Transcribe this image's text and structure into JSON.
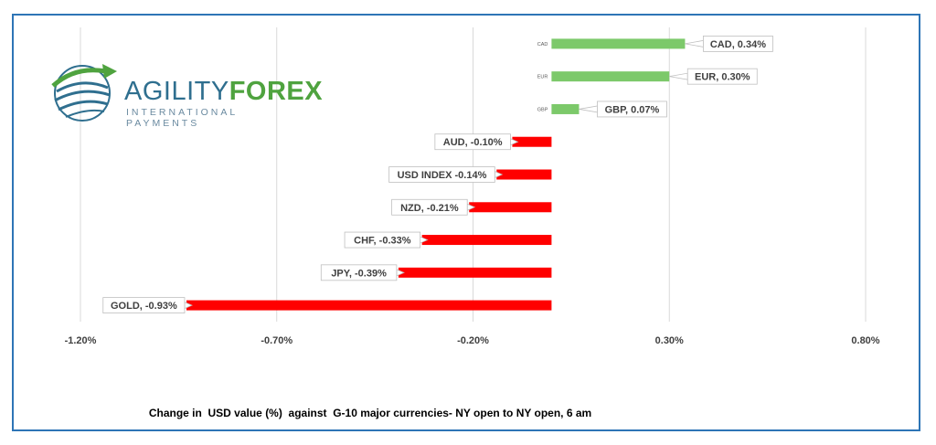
{
  "logo": {
    "name_part1": "AGILITY",
    "name_part2": "FOREX",
    "tagline": "INTERNATIONAL PAYMENTS"
  },
  "caption": "Change in  USD value (%)  against  G-10 major currencies- NY open to NY open, 6 am",
  "colors": {
    "positive": "#7cc96a",
    "negative": "#ff0000",
    "frame": "#2e75b6",
    "grid": "#d9d9d9"
  },
  "chart_data": {
    "type": "bar",
    "orientation": "horizontal",
    "categories": [
      "CAD",
      "EUR",
      "GBP",
      "AUD",
      "USD INDEX",
      "NZD",
      "CHF",
      "JPY",
      "GOLD"
    ],
    "values": [
      0.34,
      0.3,
      0.07,
      -0.1,
      -0.14,
      -0.21,
      -0.33,
      -0.39,
      -0.93
    ],
    "data_labels": [
      "CAD, 0.34%",
      "EUR, 0.30%",
      "GBP, 0.07%",
      "AUD, -0.10%",
      "USD INDEX -0.14%",
      "NZD, -0.21%",
      "CHF, -0.33%",
      "JPY, -0.39%",
      "GOLD, -0.93%"
    ],
    "x_ticks": [
      "-1.20%",
      "-0.70%",
      "-0.20%",
      "0.30%",
      "0.80%"
    ],
    "x_tick_values": [
      -1.2,
      -0.7,
      -0.2,
      0.3,
      0.8
    ],
    "xlim": [
      -1.2,
      0.8
    ],
    "grid": true,
    "legend": "none"
  }
}
